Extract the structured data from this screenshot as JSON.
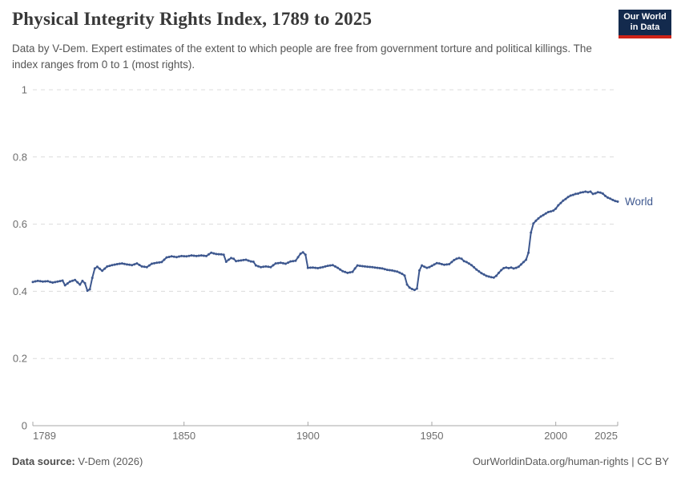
{
  "header": {
    "title": "Physical Integrity Rights Index, 1789 to 2025",
    "subtitle": "Data by V-Dem. Expert estimates of the extent to which people are free from government torture and political killings. The index ranges from 0 to 1 (most rights).",
    "logo": {
      "line1": "Our World",
      "line2": "in Data"
    }
  },
  "footer": {
    "source_label": "Data source:",
    "source_value": "V-Dem (2026)",
    "url": "OurWorldinData.org/human-rights",
    "separator": " | ",
    "license": "CC BY"
  },
  "colors": {
    "line": "#3E588F",
    "end_label": "#3E588F",
    "grid": "#DCDCDC",
    "axis": "#A7A7A7",
    "tick_text": "#6E6E6E",
    "logo_bg": "#132A4D",
    "logo_stripe": "#CE2318"
  },
  "chart_data": {
    "type": "line",
    "title": "Physical Integrity Rights Index, 1789 to 2025",
    "xlabel": "",
    "ylabel": "",
    "x_range": [
      1789,
      2025
    ],
    "ylim": [
      0,
      1
    ],
    "grid": true,
    "legend_position": "end-of-line",
    "y_ticks": [
      {
        "value": 0,
        "label": "0"
      },
      {
        "value": 0.2,
        "label": "0.2"
      },
      {
        "value": 0.4,
        "label": "0.4"
      },
      {
        "value": 0.6,
        "label": "0.6"
      },
      {
        "value": 0.8,
        "label": "0.8"
      },
      {
        "value": 1,
        "label": "1"
      }
    ],
    "x_ticks": [
      {
        "value": 1789,
        "label": "1789",
        "anchor": "start"
      },
      {
        "value": 1850,
        "label": "1850",
        "anchor": "middle"
      },
      {
        "value": 1900,
        "label": "1900",
        "anchor": "middle"
      },
      {
        "value": 1950,
        "label": "1950",
        "anchor": "middle"
      },
      {
        "value": 2000,
        "label": "2000",
        "anchor": "middle"
      },
      {
        "value": 2025,
        "label": "2025",
        "anchor": "end"
      }
    ],
    "series": [
      {
        "name": "World",
        "color": "#3E588F",
        "points": [
          [
            1789,
            0.428
          ],
          [
            1791,
            0.431
          ],
          [
            1793,
            0.429
          ],
          [
            1795,
            0.43
          ],
          [
            1797,
            0.426
          ],
          [
            1799,
            0.429
          ],
          [
            1801,
            0.432
          ],
          [
            1802,
            0.418
          ],
          [
            1804,
            0.429
          ],
          [
            1806,
            0.434
          ],
          [
            1808,
            0.42
          ],
          [
            1809,
            0.431
          ],
          [
            1810,
            0.424
          ],
          [
            1811,
            0.402
          ],
          [
            1812,
            0.406
          ],
          [
            1813,
            0.44
          ],
          [
            1814,
            0.468
          ],
          [
            1815,
            0.473
          ],
          [
            1817,
            0.461
          ],
          [
            1819,
            0.474
          ],
          [
            1821,
            0.478
          ],
          [
            1823,
            0.481
          ],
          [
            1825,
            0.483
          ],
          [
            1827,
            0.48
          ],
          [
            1829,
            0.478
          ],
          [
            1831,
            0.483
          ],
          [
            1833,
            0.474
          ],
          [
            1835,
            0.472
          ],
          [
            1837,
            0.482
          ],
          [
            1839,
            0.485
          ],
          [
            1841,
            0.487
          ],
          [
            1843,
            0.501
          ],
          [
            1845,
            0.504
          ],
          [
            1847,
            0.502
          ],
          [
            1849,
            0.505
          ],
          [
            1851,
            0.504
          ],
          [
            1853,
            0.507
          ],
          [
            1855,
            0.505
          ],
          [
            1857,
            0.507
          ],
          [
            1859,
            0.505
          ],
          [
            1861,
            0.515
          ],
          [
            1863,
            0.511
          ],
          [
            1865,
            0.51
          ],
          [
            1866,
            0.509
          ],
          [
            1867,
            0.488
          ],
          [
            1868,
            0.494
          ],
          [
            1869,
            0.499
          ],
          [
            1870,
            0.497
          ],
          [
            1871,
            0.49
          ],
          [
            1873,
            0.492
          ],
          [
            1875,
            0.494
          ],
          [
            1877,
            0.489
          ],
          [
            1878,
            0.488
          ],
          [
            1879,
            0.477
          ],
          [
            1881,
            0.472
          ],
          [
            1883,
            0.474
          ],
          [
            1885,
            0.472
          ],
          [
            1887,
            0.483
          ],
          [
            1889,
            0.485
          ],
          [
            1891,
            0.482
          ],
          [
            1893,
            0.489
          ],
          [
            1895,
            0.491
          ],
          [
            1897,
            0.512
          ],
          [
            1898,
            0.516
          ],
          [
            1899,
            0.509
          ],
          [
            1900,
            0.47
          ],
          [
            1902,
            0.471
          ],
          [
            1904,
            0.469
          ],
          [
            1906,
            0.472
          ],
          [
            1908,
            0.476
          ],
          [
            1910,
            0.478
          ],
          [
            1912,
            0.47
          ],
          [
            1914,
            0.46
          ],
          [
            1916,
            0.455
          ],
          [
            1918,
            0.458
          ],
          [
            1919,
            0.468
          ],
          [
            1920,
            0.477
          ],
          [
            1922,
            0.475
          ],
          [
            1924,
            0.473
          ],
          [
            1926,
            0.472
          ],
          [
            1928,
            0.47
          ],
          [
            1930,
            0.468
          ],
          [
            1932,
            0.464
          ],
          [
            1934,
            0.462
          ],
          [
            1936,
            0.459
          ],
          [
            1938,
            0.452
          ],
          [
            1939,
            0.447
          ],
          [
            1940,
            0.42
          ],
          [
            1941,
            0.411
          ],
          [
            1942,
            0.407
          ],
          [
            1943,
            0.404
          ],
          [
            1944,
            0.408
          ],
          [
            1945,
            0.462
          ],
          [
            1946,
            0.477
          ],
          [
            1947,
            0.473
          ],
          [
            1948,
            0.47
          ],
          [
            1949,
            0.472
          ],
          [
            1950,
            0.476
          ],
          [
            1951,
            0.48
          ],
          [
            1952,
            0.484
          ],
          [
            1953,
            0.483
          ],
          [
            1955,
            0.479
          ],
          [
            1957,
            0.481
          ],
          [
            1959,
            0.493
          ],
          [
            1960,
            0.497
          ],
          [
            1961,
            0.499
          ],
          [
            1962,
            0.497
          ],
          [
            1963,
            0.49
          ],
          [
            1964,
            0.487
          ],
          [
            1966,
            0.478
          ],
          [
            1968,
            0.465
          ],
          [
            1970,
            0.454
          ],
          [
            1972,
            0.446
          ],
          [
            1974,
            0.442
          ],
          [
            1975,
            0.441
          ],
          [
            1976,
            0.446
          ],
          [
            1977,
            0.455
          ],
          [
            1978,
            0.463
          ],
          [
            1979,
            0.469
          ],
          [
            1980,
            0.471
          ],
          [
            1981,
            0.469
          ],
          [
            1982,
            0.471
          ],
          [
            1983,
            0.468
          ],
          [
            1984,
            0.47
          ],
          [
            1985,
            0.473
          ],
          [
            1986,
            0.48
          ],
          [
            1987,
            0.487
          ],
          [
            1988,
            0.494
          ],
          [
            1989,
            0.515
          ],
          [
            1990,
            0.575
          ],
          [
            1991,
            0.602
          ],
          [
            1992,
            0.61
          ],
          [
            1993,
            0.617
          ],
          [
            1994,
            0.623
          ],
          [
            1995,
            0.627
          ],
          [
            1996,
            0.632
          ],
          [
            1997,
            0.636
          ],
          [
            1998,
            0.638
          ],
          [
            1999,
            0.64
          ],
          [
            2000,
            0.646
          ],
          [
            2001,
            0.656
          ],
          [
            2002,
            0.663
          ],
          [
            2003,
            0.67
          ],
          [
            2004,
            0.675
          ],
          [
            2005,
            0.681
          ],
          [
            2006,
            0.685
          ],
          [
            2007,
            0.687
          ],
          [
            2008,
            0.69
          ],
          [
            2009,
            0.691
          ],
          [
            2010,
            0.694
          ],
          [
            2011,
            0.695
          ],
          [
            2012,
            0.697
          ],
          [
            2013,
            0.695
          ],
          [
            2014,
            0.697
          ],
          [
            2015,
            0.69
          ],
          [
            2016,
            0.692
          ],
          [
            2017,
            0.695
          ],
          [
            2018,
            0.694
          ],
          [
            2019,
            0.691
          ],
          [
            2020,
            0.684
          ],
          [
            2021,
            0.679
          ],
          [
            2022,
            0.676
          ],
          [
            2023,
            0.672
          ],
          [
            2024,
            0.669
          ],
          [
            2025,
            0.667
          ]
        ]
      }
    ]
  }
}
